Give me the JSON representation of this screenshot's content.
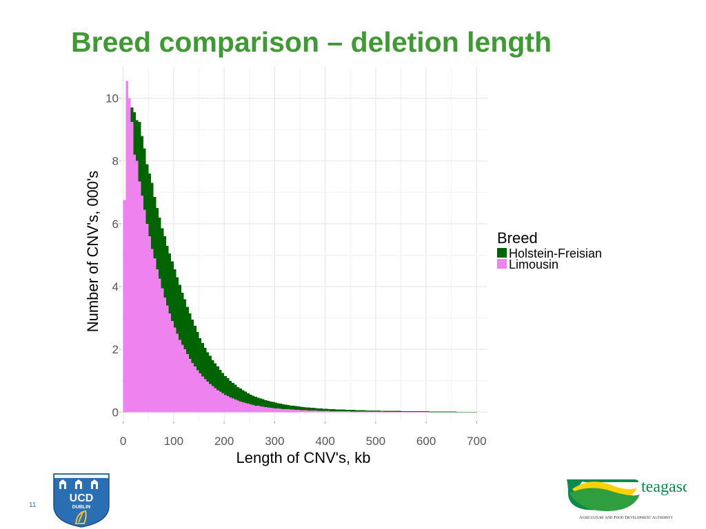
{
  "slide": {
    "title": "Breed comparison – deletion length",
    "number": "11"
  },
  "logos": {
    "ucd": {
      "line1": "UCD",
      "line2": "DUBLIN"
    },
    "teagasc": {
      "name": "teagasc",
      "tagline": "Agriculture and Food Development Authority"
    }
  },
  "colors": {
    "title": "#3f9a34",
    "holstein": "#006400",
    "limousin": "#ee82ee",
    "grid": "#e3e3e3",
    "axis_text": "#555555"
  },
  "chart_data": {
    "type": "bar",
    "subtype": "overlaid histogram",
    "xlabel": "Length of CNV's, kb",
    "ylabel": "Number of CNV's, 000's",
    "xlim": [
      -5,
      720
    ],
    "ylim": [
      -0.3,
      11
    ],
    "xticks": [
      0,
      100,
      200,
      300,
      400,
      500,
      600,
      700
    ],
    "yticks": [
      0,
      2,
      4,
      6,
      8,
      10
    ],
    "grid": true,
    "legend_title": "Breed",
    "legend_position": "right",
    "bin_width": 5,
    "series": [
      {
        "name": "Holstein-Freisian",
        "color": "#006400",
        "bins": [
          {
            "x": 10,
            "y": 6.0
          },
          {
            "x": 15,
            "y": 9.7
          },
          {
            "x": 20,
            "y": 9.55
          },
          {
            "x": 25,
            "y": 9.3
          },
          {
            "x": 30,
            "y": 9.25
          },
          {
            "x": 35,
            "y": 8.8
          },
          {
            "x": 40,
            "y": 8.4
          },
          {
            "x": 45,
            "y": 7.9
          },
          {
            "x": 50,
            "y": 7.6
          },
          {
            "x": 55,
            "y": 7.3
          },
          {
            "x": 60,
            "y": 6.85
          },
          {
            "x": 65,
            "y": 6.5
          },
          {
            "x": 70,
            "y": 6.2
          },
          {
            "x": 75,
            "y": 5.85
          },
          {
            "x": 80,
            "y": 5.6
          },
          {
            "x": 85,
            "y": 5.3
          },
          {
            "x": 90,
            "y": 5.05
          },
          {
            "x": 95,
            "y": 4.8
          },
          {
            "x": 100,
            "y": 4.55
          },
          {
            "x": 105,
            "y": 4.3
          },
          {
            "x": 110,
            "y": 4.05
          },
          {
            "x": 115,
            "y": 3.8
          },
          {
            "x": 120,
            "y": 3.6
          },
          {
            "x": 125,
            "y": 3.35
          },
          {
            "x": 130,
            "y": 3.15
          },
          {
            "x": 135,
            "y": 2.95
          },
          {
            "x": 140,
            "y": 2.75
          },
          {
            "x": 145,
            "y": 2.55
          },
          {
            "x": 150,
            "y": 2.35
          },
          {
            "x": 155,
            "y": 2.2
          },
          {
            "x": 160,
            "y": 2.05
          },
          {
            "x": 165,
            "y": 1.9
          },
          {
            "x": 170,
            "y": 1.8
          },
          {
            "x": 175,
            "y": 1.65
          },
          {
            "x": 180,
            "y": 1.55
          },
          {
            "x": 185,
            "y": 1.45
          },
          {
            "x": 190,
            "y": 1.35
          },
          {
            "x": 195,
            "y": 1.25
          },
          {
            "x": 200,
            "y": 1.15
          },
          {
            "x": 205,
            "y": 1.08
          },
          {
            "x": 210,
            "y": 1.0
          },
          {
            "x": 215,
            "y": 0.93
          },
          {
            "x": 220,
            "y": 0.87
          },
          {
            "x": 225,
            "y": 0.8
          },
          {
            "x": 230,
            "y": 0.75
          },
          {
            "x": 235,
            "y": 0.7
          },
          {
            "x": 240,
            "y": 0.65
          },
          {
            "x": 245,
            "y": 0.6
          },
          {
            "x": 250,
            "y": 0.56
          },
          {
            "x": 255,
            "y": 0.52
          },
          {
            "x": 260,
            "y": 0.49
          },
          {
            "x": 265,
            "y": 0.46
          },
          {
            "x": 270,
            "y": 0.43
          },
          {
            "x": 275,
            "y": 0.41
          },
          {
            "x": 280,
            "y": 0.38
          },
          {
            "x": 285,
            "y": 0.36
          },
          {
            "x": 290,
            "y": 0.34
          },
          {
            "x": 295,
            "y": 0.32
          },
          {
            "x": 300,
            "y": 0.3
          },
          {
            "x": 305,
            "y": 0.28
          },
          {
            "x": 310,
            "y": 0.27
          },
          {
            "x": 315,
            "y": 0.25
          },
          {
            "x": 320,
            "y": 0.24
          },
          {
            "x": 325,
            "y": 0.23
          },
          {
            "x": 330,
            "y": 0.21
          },
          {
            "x": 335,
            "y": 0.2
          },
          {
            "x": 340,
            "y": 0.19
          },
          {
            "x": 345,
            "y": 0.18
          },
          {
            "x": 350,
            "y": 0.17
          },
          {
            "x": 355,
            "y": 0.16
          },
          {
            "x": 360,
            "y": 0.155
          },
          {
            "x": 365,
            "y": 0.15
          },
          {
            "x": 370,
            "y": 0.14
          },
          {
            "x": 375,
            "y": 0.135
          },
          {
            "x": 380,
            "y": 0.13
          },
          {
            "x": 385,
            "y": 0.12
          },
          {
            "x": 390,
            "y": 0.115
          },
          {
            "x": 395,
            "y": 0.11
          },
          {
            "x": 400,
            "y": 0.105
          },
          {
            "x": 405,
            "y": 0.1
          },
          {
            "x": 410,
            "y": 0.095
          },
          {
            "x": 415,
            "y": 0.09
          },
          {
            "x": 420,
            "y": 0.088
          },
          {
            "x": 425,
            "y": 0.085
          },
          {
            "x": 430,
            "y": 0.082
          },
          {
            "x": 435,
            "y": 0.08
          },
          {
            "x": 440,
            "y": 0.077
          },
          {
            "x": 445,
            "y": 0.074
          },
          {
            "x": 450,
            "y": 0.071
          },
          {
            "x": 455,
            "y": 0.068
          },
          {
            "x": 460,
            "y": 0.065
          },
          {
            "x": 465,
            "y": 0.062
          },
          {
            "x": 470,
            "y": 0.06
          },
          {
            "x": 475,
            "y": 0.058
          },
          {
            "x": 480,
            "y": 0.056
          },
          {
            "x": 485,
            "y": 0.054
          },
          {
            "x": 490,
            "y": 0.052
          },
          {
            "x": 495,
            "y": 0.05
          },
          {
            "x": 500,
            "y": 0.048
          },
          {
            "x": 505,
            "y": 0.046
          },
          {
            "x": 510,
            "y": 0.045
          },
          {
            "x": 515,
            "y": 0.043
          },
          {
            "x": 520,
            "y": 0.042
          },
          {
            "x": 525,
            "y": 0.04
          },
          {
            "x": 530,
            "y": 0.039
          },
          {
            "x": 535,
            "y": 0.038
          },
          {
            "x": 540,
            "y": 0.037
          },
          {
            "x": 545,
            "y": 0.035
          },
          {
            "x": 550,
            "y": 0.034
          },
          {
            "x": 555,
            "y": 0.033
          },
          {
            "x": 560,
            "y": 0.032
          },
          {
            "x": 565,
            "y": 0.031
          },
          {
            "x": 570,
            "y": 0.03
          },
          {
            "x": 575,
            "y": 0.029
          },
          {
            "x": 580,
            "y": 0.028
          },
          {
            "x": 585,
            "y": 0.027
          },
          {
            "x": 590,
            "y": 0.026
          },
          {
            "x": 595,
            "y": 0.025
          },
          {
            "x": 600,
            "y": 0.024
          },
          {
            "x": 605,
            "y": 0.023
          },
          {
            "x": 610,
            "y": 0.022
          },
          {
            "x": 615,
            "y": 0.021
          },
          {
            "x": 620,
            "y": 0.02
          },
          {
            "x": 625,
            "y": 0.019
          },
          {
            "x": 630,
            "y": 0.018
          },
          {
            "x": 635,
            "y": 0.017
          },
          {
            "x": 640,
            "y": 0.016
          },
          {
            "x": 645,
            "y": 0.015
          },
          {
            "x": 650,
            "y": 0.014
          },
          {
            "x": 655,
            "y": 0.013
          },
          {
            "x": 660,
            "y": 0.012
          },
          {
            "x": 665,
            "y": 0.011
          },
          {
            "x": 670,
            "y": 0.01
          },
          {
            "x": 675,
            "y": 0.01
          },
          {
            "x": 680,
            "y": 0.009
          },
          {
            "x": 685,
            "y": 0.008
          },
          {
            "x": 690,
            "y": 0.008
          },
          {
            "x": 695,
            "y": 0.007
          }
        ]
      },
      {
        "name": "Limousin",
        "color": "#ee82ee",
        "bins": [
          {
            "x": 0,
            "y": 6.75
          },
          {
            "x": 5,
            "y": 10.55
          },
          {
            "x": 10,
            "y": 10.0
          },
          {
            "x": 15,
            "y": 9.25
          },
          {
            "x": 20,
            "y": 8.2
          },
          {
            "x": 25,
            "y": 8.0
          },
          {
            "x": 30,
            "y": 7.35
          },
          {
            "x": 35,
            "y": 6.9
          },
          {
            "x": 40,
            "y": 6.45
          },
          {
            "x": 45,
            "y": 6.0
          },
          {
            "x": 50,
            "y": 5.6
          },
          {
            "x": 55,
            "y": 5.2
          },
          {
            "x": 60,
            "y": 4.9
          },
          {
            "x": 65,
            "y": 4.55
          },
          {
            "x": 70,
            "y": 4.25
          },
          {
            "x": 75,
            "y": 3.95
          },
          {
            "x": 80,
            "y": 3.65
          },
          {
            "x": 85,
            "y": 3.4
          },
          {
            "x": 90,
            "y": 3.15
          },
          {
            "x": 95,
            "y": 2.9
          },
          {
            "x": 100,
            "y": 2.7
          },
          {
            "x": 105,
            "y": 2.5
          },
          {
            "x": 110,
            "y": 2.3
          },
          {
            "x": 115,
            "y": 2.15
          },
          {
            "x": 120,
            "y": 2.0
          },
          {
            "x": 125,
            "y": 1.85
          },
          {
            "x": 130,
            "y": 1.7
          },
          {
            "x": 135,
            "y": 1.57
          },
          {
            "x": 140,
            "y": 1.45
          },
          {
            "x": 145,
            "y": 1.34
          },
          {
            "x": 150,
            "y": 1.24
          },
          {
            "x": 155,
            "y": 1.14
          },
          {
            "x": 160,
            "y": 1.05
          },
          {
            "x": 165,
            "y": 0.97
          },
          {
            "x": 170,
            "y": 0.9
          },
          {
            "x": 175,
            "y": 0.83
          },
          {
            "x": 180,
            "y": 0.76
          },
          {
            "x": 185,
            "y": 0.7
          },
          {
            "x": 190,
            "y": 0.65
          },
          {
            "x": 195,
            "y": 0.6
          },
          {
            "x": 200,
            "y": 0.55
          },
          {
            "x": 205,
            "y": 0.51
          },
          {
            "x": 210,
            "y": 0.47
          },
          {
            "x": 215,
            "y": 0.43
          },
          {
            "x": 220,
            "y": 0.4
          },
          {
            "x": 225,
            "y": 0.37
          },
          {
            "x": 230,
            "y": 0.34
          },
          {
            "x": 235,
            "y": 0.31
          },
          {
            "x": 240,
            "y": 0.29
          },
          {
            "x": 245,
            "y": 0.27
          },
          {
            "x": 250,
            "y": 0.25
          },
          {
            "x": 255,
            "y": 0.23
          },
          {
            "x": 260,
            "y": 0.21
          },
          {
            "x": 265,
            "y": 0.2
          },
          {
            "x": 270,
            "y": 0.18
          },
          {
            "x": 275,
            "y": 0.17
          },
          {
            "x": 280,
            "y": 0.16
          },
          {
            "x": 285,
            "y": 0.15
          },
          {
            "x": 290,
            "y": 0.14
          },
          {
            "x": 295,
            "y": 0.13
          },
          {
            "x": 300,
            "y": 0.12
          },
          {
            "x": 305,
            "y": 0.115
          },
          {
            "x": 310,
            "y": 0.11
          },
          {
            "x": 315,
            "y": 0.1
          },
          {
            "x": 320,
            "y": 0.095
          },
          {
            "x": 325,
            "y": 0.09
          },
          {
            "x": 330,
            "y": 0.085
          },
          {
            "x": 335,
            "y": 0.08
          },
          {
            "x": 340,
            "y": 0.075
          },
          {
            "x": 345,
            "y": 0.07
          },
          {
            "x": 350,
            "y": 0.066
          },
          {
            "x": 355,
            "y": 0.062
          },
          {
            "x": 360,
            "y": 0.058
          },
          {
            "x": 365,
            "y": 0.055
          },
          {
            "x": 370,
            "y": 0.052
          },
          {
            "x": 375,
            "y": 0.049
          },
          {
            "x": 380,
            "y": 0.046
          },
          {
            "x": 385,
            "y": 0.043
          },
          {
            "x": 390,
            "y": 0.041
          },
          {
            "x": 395,
            "y": 0.039
          },
          {
            "x": 400,
            "y": 0.037
          },
          {
            "x": 405,
            "y": 0.035
          },
          {
            "x": 410,
            "y": 0.033
          },
          {
            "x": 415,
            "y": 0.031
          },
          {
            "x": 420,
            "y": 0.03
          },
          {
            "x": 425,
            "y": 0.028
          },
          {
            "x": 430,
            "y": 0.027
          },
          {
            "x": 435,
            "y": 0.026
          },
          {
            "x": 440,
            "y": 0.025
          },
          {
            "x": 445,
            "y": 0.024
          },
          {
            "x": 450,
            "y": 0.023
          },
          {
            "x": 455,
            "y": 0.022
          },
          {
            "x": 460,
            "y": 0.021
          },
          {
            "x": 465,
            "y": 0.02
          },
          {
            "x": 470,
            "y": 0.019
          },
          {
            "x": 475,
            "y": 0.018
          },
          {
            "x": 480,
            "y": 0.017
          },
          {
            "x": 485,
            "y": 0.016
          },
          {
            "x": 490,
            "y": 0.015
          },
          {
            "x": 495,
            "y": 0.015
          },
          {
            "x": 500,
            "y": 0.014
          },
          {
            "x": 505,
            "y": 0.013
          },
          {
            "x": 510,
            "y": 0.013
          },
          {
            "x": 515,
            "y": 0.012
          },
          {
            "x": 520,
            "y": 0.012
          },
          {
            "x": 525,
            "y": 0.011
          },
          {
            "x": 530,
            "y": 0.011
          },
          {
            "x": 535,
            "y": 0.01
          },
          {
            "x": 540,
            "y": 0.01
          },
          {
            "x": 545,
            "y": 0.009
          },
          {
            "x": 550,
            "y": 0.009
          },
          {
            "x": 555,
            "y": 0.008
          },
          {
            "x": 560,
            "y": 0.008
          },
          {
            "x": 565,
            "y": 0.008
          },
          {
            "x": 570,
            "y": 0.007
          },
          {
            "x": 575,
            "y": 0.007
          },
          {
            "x": 580,
            "y": 0.007
          },
          {
            "x": 585,
            "y": 0.006
          },
          {
            "x": 590,
            "y": 0.006
          },
          {
            "x": 595,
            "y": 0.006
          },
          {
            "x": 600,
            "y": 0.005
          }
        ]
      }
    ]
  }
}
